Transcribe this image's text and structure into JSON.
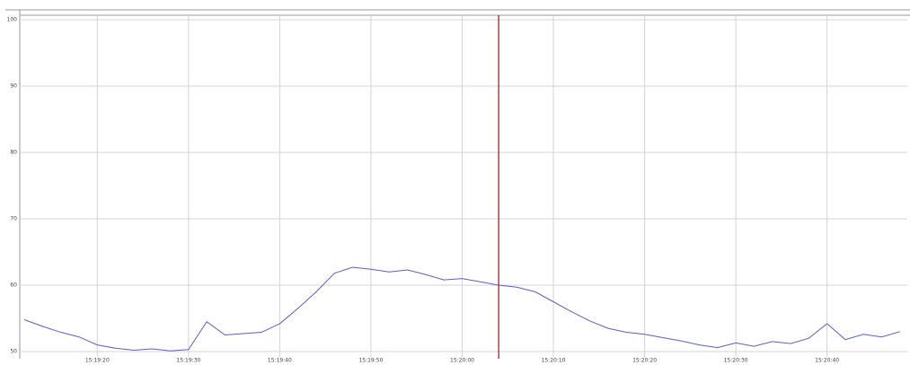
{
  "chart_data": {
    "type": "line",
    "x": [
      55152,
      55154,
      55156,
      55158,
      55160,
      55162,
      55164,
      55166,
      55168,
      55170,
      55172,
      55174,
      55176,
      55178,
      55180,
      55182,
      55184,
      55186,
      55188,
      55190,
      55192,
      55194,
      55196,
      55198,
      55200,
      55202,
      55204,
      55206,
      55208,
      55210,
      55212,
      55214,
      55216,
      55218,
      55220,
      55222,
      55224,
      55226,
      55228,
      55230,
      55232,
      55234,
      55236,
      55238,
      55240,
      55242,
      55244,
      55246,
      55248
    ],
    "series": [
      {
        "color": "#5c5cd6",
        "values": [
          54.8,
          53.8,
          52.9,
          52.2,
          51.0,
          50.5,
          50.2,
          50.4,
          50.1,
          50.3,
          54.5,
          52.5,
          52.7,
          52.9,
          54.2,
          56.5,
          59.0,
          61.8,
          62.7,
          62.4,
          62.0,
          62.3,
          61.6,
          60.8,
          61.0,
          60.5,
          60.0,
          59.7,
          59.0,
          57.5,
          56.0,
          54.6,
          53.5,
          52.9,
          52.6,
          52.1,
          51.6,
          51.0,
          50.6,
          51.3,
          50.8,
          51.5,
          51.2,
          52.0,
          54.2,
          51.8,
          52.6,
          52.2,
          53.0
        ]
      }
    ],
    "xlim": [
      55151.5,
      55248.8
    ],
    "xticks": [
      {
        "value": 55160,
        "label": "15:19:20"
      },
      {
        "value": 55170,
        "label": "15:19:30"
      },
      {
        "value": 55180,
        "label": "15:19:40"
      },
      {
        "value": 55190,
        "label": "15:19:50"
      },
      {
        "value": 55200,
        "label": "15:20:00"
      },
      {
        "value": 55210,
        "label": "15:20:10"
      },
      {
        "value": 55220,
        "label": "15:20:20"
      },
      {
        "value": 55230,
        "label": "15:20:30"
      },
      {
        "value": 55240,
        "label": "15:20:40"
      }
    ],
    "ylim": [
      50,
      100
    ],
    "yticks": [
      50,
      60,
      70,
      80,
      90,
      100
    ],
    "grid": true,
    "cursor_x": 55204,
    "cursor_color": "#8b1a1a"
  }
}
